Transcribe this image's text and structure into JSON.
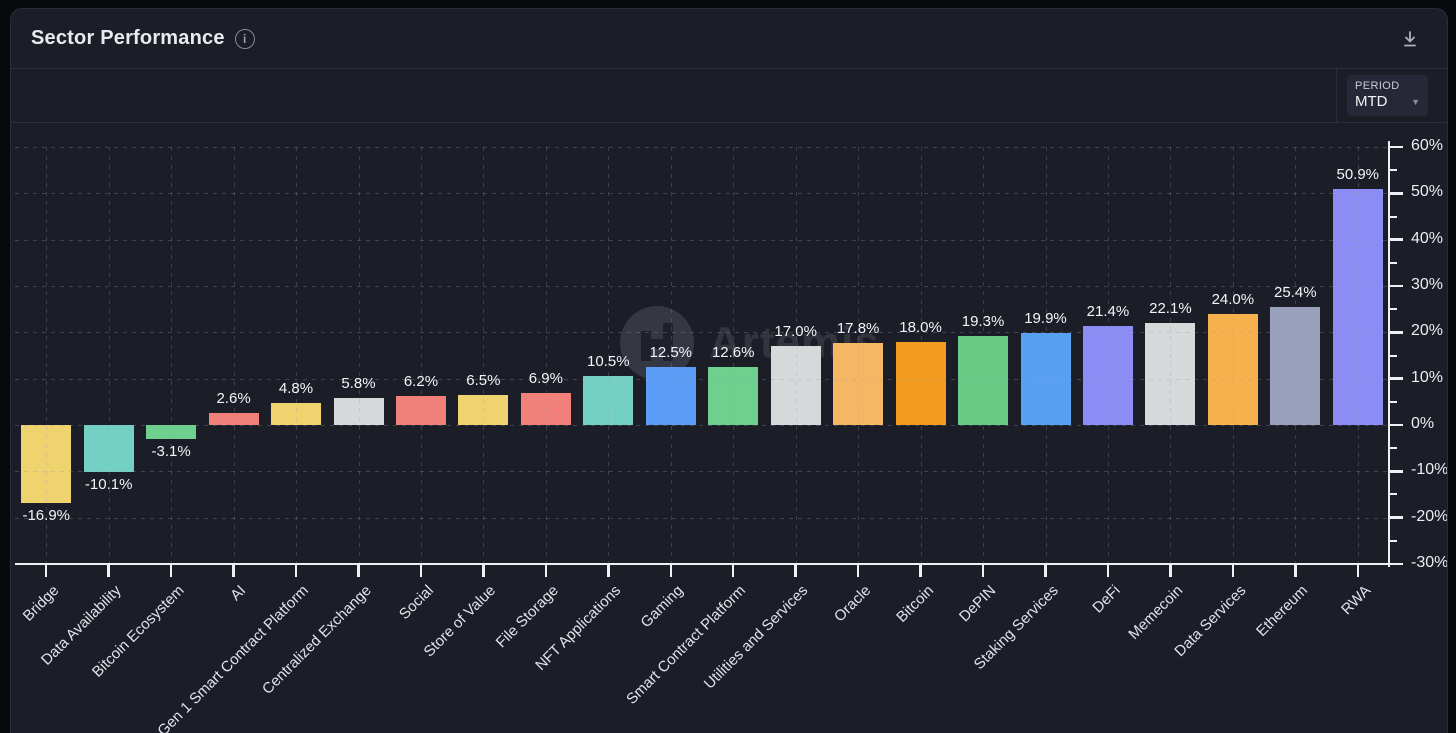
{
  "header": {
    "title": "Sector Performance"
  },
  "controls": {
    "period_label": "PERIOD",
    "period_value": "MTD"
  },
  "watermark": {
    "text": "Artemis"
  },
  "chart_data": {
    "type": "bar",
    "title": "Sector Performance",
    "xlabel": "",
    "ylabel": "",
    "y_unit": "%",
    "ylim": [
      -30,
      60
    ],
    "grid": "dashed",
    "legend_position": "none",
    "y_axis_side": "right",
    "y_major_ticks": [
      60,
      50,
      40,
      30,
      20,
      10,
      0,
      -10,
      -20,
      -30
    ],
    "y_major_tick_labels": [
      "60%",
      "50%",
      "40%",
      "30%",
      "20%",
      "10%",
      "0%",
      "-10%",
      "-20%",
      "-30%"
    ],
    "y_minor_ticks": [
      55,
      45,
      35,
      25,
      15,
      5,
      -5,
      -15,
      -25
    ],
    "categories": [
      "Bridge",
      "Data Availability",
      "Bitcoin Ecosystem",
      "AI",
      "Gen 1 Smart Contract Platform",
      "Centralized Exchange",
      "Social",
      "Store of Value",
      "File Storage",
      "NFT Applications",
      "Gaming",
      "Smart Contract Platform",
      "Utilities and Services",
      "Oracle",
      "Bitcoin",
      "DePIN",
      "Staking Services",
      "DeFi",
      "Memecoin",
      "Data Services",
      "Ethereum",
      "RWA"
    ],
    "values": [
      -16.9,
      -10.1,
      -3.1,
      2.6,
      4.8,
      5.8,
      6.2,
      6.5,
      6.9,
      10.5,
      12.5,
      12.6,
      17.0,
      17.8,
      18.0,
      19.3,
      19.9,
      21.4,
      22.1,
      24.0,
      25.4,
      50.9
    ],
    "value_labels": [
      "-16.9%",
      "-10.1%",
      "-3.1%",
      "2.6%",
      "4.8%",
      "5.8%",
      "6.2%",
      "6.5%",
      "6.9%",
      "10.5%",
      "12.5%",
      "12.6%",
      "17.0%",
      "17.8%",
      "18.0%",
      "19.3%",
      "19.9%",
      "21.4%",
      "22.1%",
      "24.0%",
      "25.4%",
      "50.9%"
    ],
    "bar_colors": [
      "#efd36f",
      "#74cfc4",
      "#6fcf8e",
      "#f1807a",
      "#efd36f",
      "#d7d8da",
      "#f1807a",
      "#efd36f",
      "#f1807a",
      "#74cfc4",
      "#5b9cf6",
      "#6fcf8e",
      "#d7d8da",
      "#f6b765",
      "#f39a20",
      "#67cb86",
      "#57a0f2",
      "#8b8cf4",
      "#d7d8da",
      "#f6b14e",
      "#99a0bc",
      "#8b8cf4"
    ]
  },
  "colors": {
    "card_bg": "#1b1d27",
    "page_bg": "#08090d",
    "axis": "#eef0f4",
    "text": "#e9eaef"
  }
}
